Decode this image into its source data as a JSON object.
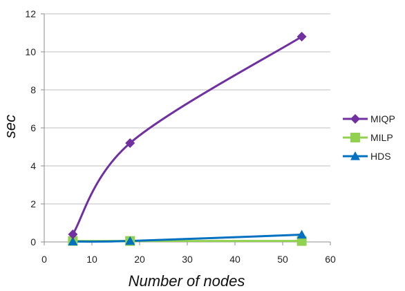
{
  "chart_data": {
    "type": "line",
    "title": "",
    "xlabel": "Number of nodes",
    "ylabel": "sec",
    "xlim": [
      0,
      60
    ],
    "ylim": [
      0,
      12
    ],
    "x_ticks": [
      0,
      10,
      20,
      30,
      40,
      50,
      60
    ],
    "y_ticks": [
      0,
      2,
      4,
      6,
      8,
      10,
      12
    ],
    "grid": "horizontal",
    "legend_position": "right",
    "series": [
      {
        "name": "MIQP",
        "color": "#7030a0",
        "marker": "diamond",
        "x": [
          6,
          18,
          54
        ],
        "y": [
          0.4,
          5.2,
          10.8
        ]
      },
      {
        "name": "MILP",
        "color": "#92d050",
        "marker": "square",
        "x": [
          6,
          18,
          54
        ],
        "y": [
          0.05,
          0.05,
          0.05
        ]
      },
      {
        "name": "HDS",
        "color": "#0070c0",
        "marker": "triangle",
        "x": [
          6,
          18,
          54
        ],
        "y": [
          0.02,
          0.05,
          0.38
        ]
      }
    ]
  }
}
